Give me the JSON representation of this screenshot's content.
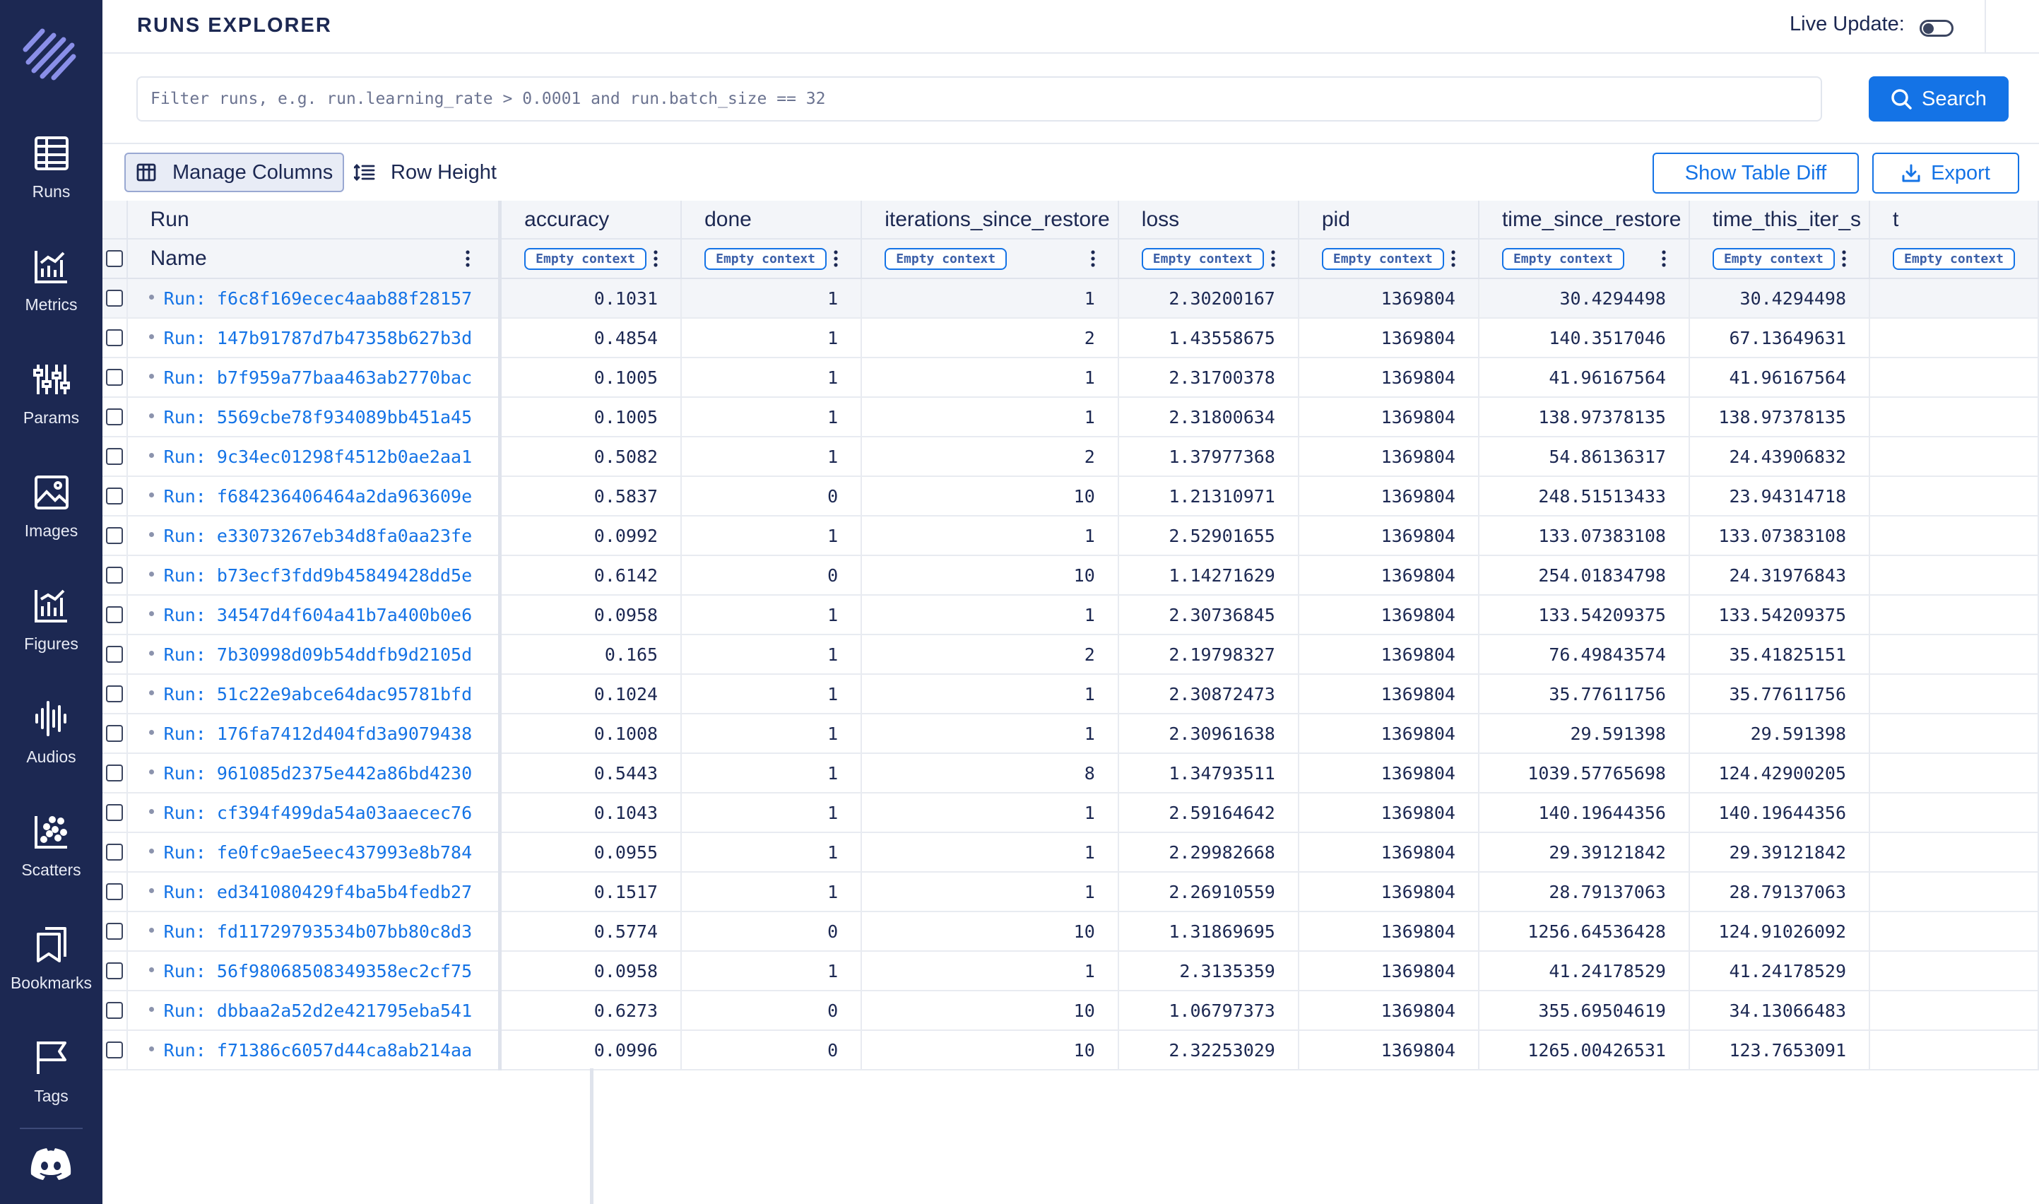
{
  "app": {
    "title": "RUNS EXPLORER",
    "live_update_label": "Live Update:",
    "live_update_on": false,
    "accent_color": "#1473e6",
    "sidebar_color": "#1c2852"
  },
  "sidebar": {
    "items": [
      {
        "label": "Runs",
        "icon": "table-icon"
      },
      {
        "label": "Metrics",
        "icon": "line-chart-icon"
      },
      {
        "label": "Params",
        "icon": "params-icon"
      },
      {
        "label": "Images",
        "icon": "image-icon"
      },
      {
        "label": "Figures",
        "icon": "figures-icon"
      },
      {
        "label": "Audios",
        "icon": "audio-wave-icon"
      },
      {
        "label": "Scatters",
        "icon": "scatter-icon"
      },
      {
        "label": "Bookmarks",
        "icon": "bookmark-icon"
      },
      {
        "label": "Tags",
        "icon": "flag-icon"
      }
    ]
  },
  "search": {
    "placeholder": "Filter runs, e.g. run.learning_rate > 0.0001 and run.batch_size == 32",
    "button_label": "Search"
  },
  "toolbar": {
    "manage_columns": "Manage Columns",
    "row_height": "Row Height",
    "show_table_diff": "Show Table Diff",
    "export": "Export"
  },
  "table": {
    "group_header": "Run",
    "name_header": "Name",
    "context_badge": "Empty context",
    "columns": [
      "accuracy",
      "done",
      "iterations_since_restore",
      "loss",
      "pid",
      "time_since_restore",
      "time_this_iter_s",
      "t"
    ],
    "rows": [
      {
        "run": "Run: f6c8f169ecec4aab88f28157",
        "accuracy": "0.1031",
        "done": "1",
        "iterations_since_restore": "1",
        "loss": "2.30200167",
        "pid": "1369804",
        "time_since_restore": "30.4294498",
        "time_this_iter_s": "30.4294498"
      },
      {
        "run": "Run: 147b91787d7b47358b627b3d",
        "accuracy": "0.4854",
        "done": "1",
        "iterations_since_restore": "2",
        "loss": "1.43558675",
        "pid": "1369804",
        "time_since_restore": "140.3517046",
        "time_this_iter_s": "67.13649631"
      },
      {
        "run": "Run: b7f959a77baa463ab2770bac",
        "accuracy": "0.1005",
        "done": "1",
        "iterations_since_restore": "1",
        "loss": "2.31700378",
        "pid": "1369804",
        "time_since_restore": "41.96167564",
        "time_this_iter_s": "41.96167564"
      },
      {
        "run": "Run: 5569cbe78f934089bb451a45",
        "accuracy": "0.1005",
        "done": "1",
        "iterations_since_restore": "1",
        "loss": "2.31800634",
        "pid": "1369804",
        "time_since_restore": "138.97378135",
        "time_this_iter_s": "138.97378135"
      },
      {
        "run": "Run: 9c34ec01298f4512b0ae2aa1",
        "accuracy": "0.5082",
        "done": "1",
        "iterations_since_restore": "2",
        "loss": "1.37977368",
        "pid": "1369804",
        "time_since_restore": "54.86136317",
        "time_this_iter_s": "24.43906832"
      },
      {
        "run": "Run: f684236406464a2da963609e",
        "accuracy": "0.5837",
        "done": "0",
        "iterations_since_restore": "10",
        "loss": "1.21310971",
        "pid": "1369804",
        "time_since_restore": "248.51513433",
        "time_this_iter_s": "23.94314718"
      },
      {
        "run": "Run: e33073267eb34d8fa0aa23fe",
        "accuracy": "0.0992",
        "done": "1",
        "iterations_since_restore": "1",
        "loss": "2.52901655",
        "pid": "1369804",
        "time_since_restore": "133.07383108",
        "time_this_iter_s": "133.07383108"
      },
      {
        "run": "Run: b73ecf3fdd9b45849428dd5e",
        "accuracy": "0.6142",
        "done": "0",
        "iterations_since_restore": "10",
        "loss": "1.14271629",
        "pid": "1369804",
        "time_since_restore": "254.01834798",
        "time_this_iter_s": "24.31976843"
      },
      {
        "run": "Run: 34547d4f604a41b7a400b0e6",
        "accuracy": "0.0958",
        "done": "1",
        "iterations_since_restore": "1",
        "loss": "2.30736845",
        "pid": "1369804",
        "time_since_restore": "133.54209375",
        "time_this_iter_s": "133.54209375"
      },
      {
        "run": "Run: 7b30998d09b54ddfb9d2105d",
        "accuracy": "0.165",
        "done": "1",
        "iterations_since_restore": "2",
        "loss": "2.19798327",
        "pid": "1369804",
        "time_since_restore": "76.49843574",
        "time_this_iter_s": "35.41825151"
      },
      {
        "run": "Run: 51c22e9abce64dac95781bfd",
        "accuracy": "0.1024",
        "done": "1",
        "iterations_since_restore": "1",
        "loss": "2.30872473",
        "pid": "1369804",
        "time_since_restore": "35.77611756",
        "time_this_iter_s": "35.77611756"
      },
      {
        "run": "Run: 176fa7412d404fd3a9079438",
        "accuracy": "0.1008",
        "done": "1",
        "iterations_since_restore": "1",
        "loss": "2.30961638",
        "pid": "1369804",
        "time_since_restore": "29.591398",
        "time_this_iter_s": "29.591398"
      },
      {
        "run": "Run: 961085d2375e442a86bd4230",
        "accuracy": "0.5443",
        "done": "1",
        "iterations_since_restore": "8",
        "loss": "1.34793511",
        "pid": "1369804",
        "time_since_restore": "1039.57765698",
        "time_this_iter_s": "124.42900205"
      },
      {
        "run": "Run: cf394f499da54a03aaecec76",
        "accuracy": "0.1043",
        "done": "1",
        "iterations_since_restore": "1",
        "loss": "2.59164642",
        "pid": "1369804",
        "time_since_restore": "140.19644356",
        "time_this_iter_s": "140.19644356"
      },
      {
        "run": "Run: fe0fc9ae5eec437993e8b784",
        "accuracy": "0.0955",
        "done": "1",
        "iterations_since_restore": "1",
        "loss": "2.29982668",
        "pid": "1369804",
        "time_since_restore": "29.39121842",
        "time_this_iter_s": "29.39121842"
      },
      {
        "run": "Run: ed341080429f4ba5b4fedb27",
        "accuracy": "0.1517",
        "done": "1",
        "iterations_since_restore": "1",
        "loss": "2.26910559",
        "pid": "1369804",
        "time_since_restore": "28.79137063",
        "time_this_iter_s": "28.79137063"
      },
      {
        "run": "Run: fd11729793534b07bb80c8d3",
        "accuracy": "0.5774",
        "done": "0",
        "iterations_since_restore": "10",
        "loss": "1.31869695",
        "pid": "1369804",
        "time_since_restore": "1256.64536428",
        "time_this_iter_s": "124.91026092"
      },
      {
        "run": "Run: 56f98068508349358ec2cf75",
        "accuracy": "0.0958",
        "done": "1",
        "iterations_since_restore": "1",
        "loss": "2.3135359",
        "pid": "1369804",
        "time_since_restore": "41.24178529",
        "time_this_iter_s": "41.24178529"
      },
      {
        "run": "Run: dbbaa2a52d2e421795eba541",
        "accuracy": "0.6273",
        "done": "0",
        "iterations_since_restore": "10",
        "loss": "1.06797373",
        "pid": "1369804",
        "time_since_restore": "355.69504619",
        "time_this_iter_s": "34.13066483"
      },
      {
        "run": "Run: f71386c6057d44ca8ab214aa",
        "accuracy": "0.0996",
        "done": "0",
        "iterations_since_restore": "10",
        "loss": "2.32253029",
        "pid": "1369804",
        "time_since_restore": "1265.00426531",
        "time_this_iter_s": "123.7653091"
      }
    ]
  }
}
